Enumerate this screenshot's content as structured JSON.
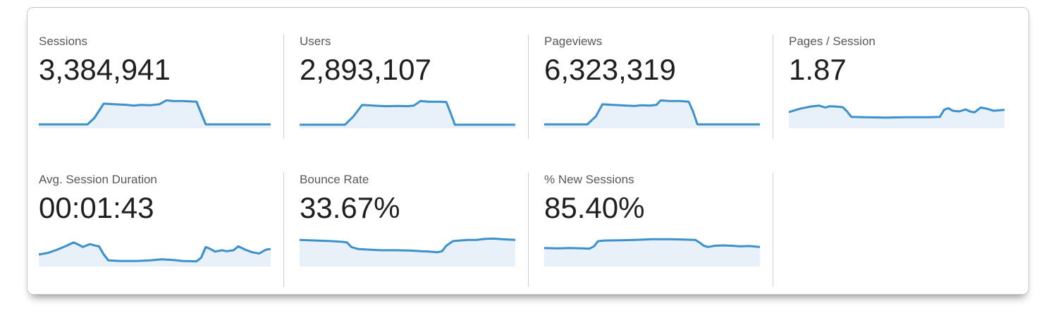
{
  "panel": {
    "background": "#ffffff"
  },
  "colors": {
    "spark_line": "#3c91cb",
    "spark_fill": "#e8f1fa",
    "divider": "#cccccc",
    "card_border": "#c6c6c6",
    "label_text": "#58585a",
    "value_text": "#1f1f1f"
  },
  "chart_data": [
    {
      "type": "area",
      "title": "Sessions",
      "value": "3,384,941",
      "x_range": [
        0,
        100
      ],
      "y_range": [
        0,
        1
      ],
      "grid": false,
      "legend": false,
      "points": [
        [
          0,
          0.1
        ],
        [
          21,
          0.1
        ],
        [
          24,
          0.3
        ],
        [
          28,
          0.74
        ],
        [
          33,
          0.72
        ],
        [
          38,
          0.7
        ],
        [
          41,
          0.68
        ],
        [
          44,
          0.7
        ],
        [
          48,
          0.69
        ],
        [
          52,
          0.72
        ],
        [
          55,
          0.84
        ],
        [
          58,
          0.82
        ],
        [
          62,
          0.82
        ],
        [
          65,
          0.81
        ],
        [
          68,
          0.8
        ],
        [
          70,
          0.45
        ],
        [
          72,
          0.1
        ],
        [
          78,
          0.1
        ],
        [
          100,
          0.1
        ]
      ]
    },
    {
      "type": "area",
      "title": "Users",
      "value": "2,893,107",
      "x_range": [
        0,
        100
      ],
      "y_range": [
        0,
        1
      ],
      "grid": false,
      "legend": false,
      "points": [
        [
          0,
          0.09
        ],
        [
          21,
          0.09
        ],
        [
          25,
          0.35
        ],
        [
          29,
          0.7
        ],
        [
          34,
          0.68
        ],
        [
          40,
          0.66
        ],
        [
          46,
          0.67
        ],
        [
          50,
          0.66
        ],
        [
          53,
          0.68
        ],
        [
          56,
          0.82
        ],
        [
          60,
          0.8
        ],
        [
          65,
          0.8
        ],
        [
          68,
          0.79
        ],
        [
          70,
          0.45
        ],
        [
          72,
          0.09
        ],
        [
          100,
          0.09
        ]
      ]
    },
    {
      "type": "area",
      "title": "Pageviews",
      "value": "6,323,319",
      "x_range": [
        0,
        100
      ],
      "y_range": [
        0,
        1
      ],
      "grid": false,
      "legend": false,
      "points": [
        [
          0,
          0.1
        ],
        [
          20,
          0.1
        ],
        [
          24,
          0.35
        ],
        [
          27,
          0.72
        ],
        [
          32,
          0.7
        ],
        [
          38,
          0.68
        ],
        [
          42,
          0.67
        ],
        [
          45,
          0.69
        ],
        [
          49,
          0.68
        ],
        [
          52,
          0.7
        ],
        [
          54,
          0.84
        ],
        [
          58,
          0.82
        ],
        [
          63,
          0.82
        ],
        [
          67,
          0.8
        ],
        [
          69,
          0.5
        ],
        [
          71,
          0.1
        ],
        [
          100,
          0.1
        ]
      ]
    },
    {
      "type": "area",
      "title": "Pages / Session",
      "value": "1.87",
      "x_range": [
        0,
        100
      ],
      "y_range": [
        0,
        1
      ],
      "grid": false,
      "legend": false,
      "points": [
        [
          0,
          0.48
        ],
        [
          5,
          0.58
        ],
        [
          10,
          0.65
        ],
        [
          14,
          0.68
        ],
        [
          17,
          0.62
        ],
        [
          19,
          0.66
        ],
        [
          22,
          0.65
        ],
        [
          25,
          0.63
        ],
        [
          27,
          0.5
        ],
        [
          29,
          0.33
        ],
        [
          35,
          0.32
        ],
        [
          45,
          0.31
        ],
        [
          55,
          0.32
        ],
        [
          65,
          0.32
        ],
        [
          70,
          0.33
        ],
        [
          72,
          0.55
        ],
        [
          74,
          0.6
        ],
        [
          76,
          0.52
        ],
        [
          79,
          0.5
        ],
        [
          82,
          0.56
        ],
        [
          84,
          0.5
        ],
        [
          86,
          0.47
        ],
        [
          89,
          0.62
        ],
        [
          92,
          0.58
        ],
        [
          95,
          0.52
        ],
        [
          98,
          0.54
        ],
        [
          100,
          0.55
        ]
      ]
    },
    {
      "type": "area",
      "title": "Avg. Session Duration",
      "value": "00:01:43",
      "x_range": [
        0,
        100
      ],
      "y_range": [
        0,
        1
      ],
      "grid": false,
      "legend": false,
      "points": [
        [
          0,
          0.35
        ],
        [
          4,
          0.4
        ],
        [
          8,
          0.5
        ],
        [
          12,
          0.62
        ],
        [
          15,
          0.72
        ],
        [
          17,
          0.66
        ],
        [
          19,
          0.58
        ],
        [
          22,
          0.67
        ],
        [
          24,
          0.63
        ],
        [
          26,
          0.6
        ],
        [
          28,
          0.35
        ],
        [
          30,
          0.17
        ],
        [
          35,
          0.15
        ],
        [
          42,
          0.15
        ],
        [
          48,
          0.17
        ],
        [
          53,
          0.2
        ],
        [
          58,
          0.18
        ],
        [
          62,
          0.15
        ],
        [
          68,
          0.14
        ],
        [
          70,
          0.25
        ],
        [
          72,
          0.58
        ],
        [
          74,
          0.52
        ],
        [
          76,
          0.44
        ],
        [
          79,
          0.48
        ],
        [
          81,
          0.45
        ],
        [
          84,
          0.48
        ],
        [
          86,
          0.6
        ],
        [
          89,
          0.5
        ],
        [
          92,
          0.42
        ],
        [
          95,
          0.38
        ],
        [
          98,
          0.5
        ],
        [
          100,
          0.52
        ]
      ]
    },
    {
      "type": "area",
      "title": "Bounce Rate",
      "value": "33.67%",
      "x_range": [
        0,
        100
      ],
      "y_range": [
        0,
        1
      ],
      "grid": false,
      "legend": false,
      "points": [
        [
          0,
          0.8
        ],
        [
          8,
          0.78
        ],
        [
          15,
          0.76
        ],
        [
          20,
          0.74
        ],
        [
          22,
          0.72
        ],
        [
          24,
          0.58
        ],
        [
          27,
          0.52
        ],
        [
          32,
          0.5
        ],
        [
          38,
          0.48
        ],
        [
          45,
          0.48
        ],
        [
          52,
          0.47
        ],
        [
          56,
          0.45
        ],
        [
          60,
          0.44
        ],
        [
          64,
          0.42
        ],
        [
          66,
          0.45
        ],
        [
          68,
          0.62
        ],
        [
          71,
          0.76
        ],
        [
          74,
          0.78
        ],
        [
          78,
          0.8
        ],
        [
          82,
          0.8
        ],
        [
          86,
          0.83
        ],
        [
          90,
          0.84
        ],
        [
          94,
          0.82
        ],
        [
          100,
          0.8
        ]
      ]
    },
    {
      "type": "area",
      "title": "% New Sessions",
      "value": "85.40%",
      "x_range": [
        0,
        100
      ],
      "y_range": [
        0,
        1
      ],
      "grid": false,
      "legend": false,
      "points": [
        [
          0,
          0.55
        ],
        [
          6,
          0.54
        ],
        [
          12,
          0.55
        ],
        [
          18,
          0.54
        ],
        [
          21,
          0.53
        ],
        [
          23,
          0.6
        ],
        [
          25,
          0.76
        ],
        [
          28,
          0.78
        ],
        [
          35,
          0.79
        ],
        [
          42,
          0.8
        ],
        [
          50,
          0.82
        ],
        [
          58,
          0.82
        ],
        [
          65,
          0.81
        ],
        [
          70,
          0.8
        ],
        [
          72,
          0.72
        ],
        [
          74,
          0.62
        ],
        [
          76,
          0.58
        ],
        [
          79,
          0.62
        ],
        [
          83,
          0.63
        ],
        [
          87,
          0.62
        ],
        [
          91,
          0.6
        ],
        [
          95,
          0.61
        ],
        [
          100,
          0.58
        ]
      ]
    }
  ]
}
